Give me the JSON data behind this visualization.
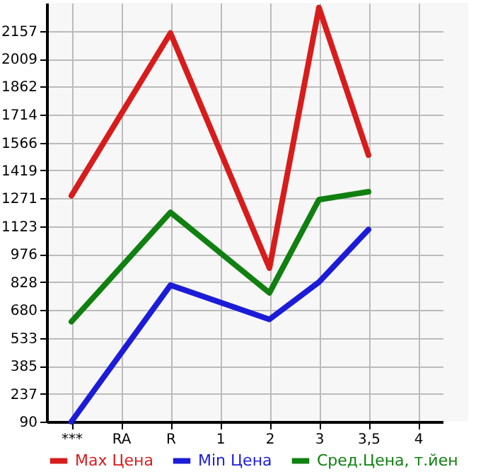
{
  "chart_data": {
    "type": "line",
    "categories": [
      "***",
      "RA",
      "R",
      "1",
      "2",
      "3",
      "3,5",
      "4"
    ],
    "series": [
      {
        "name": "Max Цена",
        "color": "#d81c1c",
        "values": [
          1285,
          null,
          2145,
          null,
          902,
          2280,
          1500,
          null
        ]
      },
      {
        "name": "Min Цена",
        "color": "#1c1cd8",
        "values": [
          90,
          null,
          812,
          null,
          631,
          828,
          1106,
          null
        ]
      },
      {
        "name": "Сред.Цена, т.йен",
        "color": "#108010",
        "values": [
          619,
          null,
          1197,
          null,
          771,
          1264,
          1306,
          null
        ]
      }
    ],
    "ylim": [
      90,
      2305
    ],
    "yticks": [
      90,
      237,
      385,
      533,
      680,
      828,
      976,
      1123,
      1271,
      1419,
      1566,
      1714,
      1862,
      2009,
      2157
    ],
    "grid": true,
    "legend": "bottom",
    "marker": "none",
    "line_style": "solid"
  }
}
